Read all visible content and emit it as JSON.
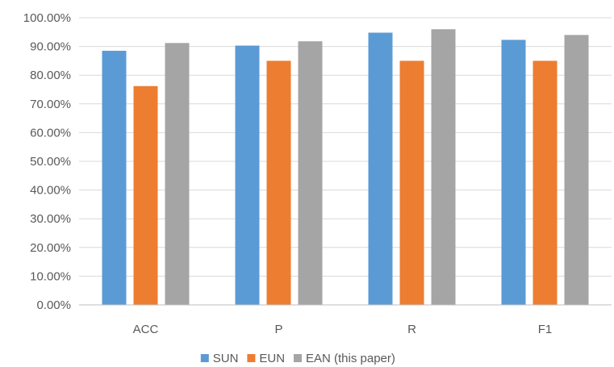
{
  "chart_data": {
    "type": "bar",
    "categories": [
      "ACC",
      "P",
      "R",
      "F1"
    ],
    "series": [
      {
        "name": "SUN",
        "values": [
          88.5,
          90.3,
          94.8,
          92.3
        ],
        "color": "#5b9bd5"
      },
      {
        "name": "EUN",
        "values": [
          76.2,
          85.0,
          85.0,
          85.0
        ],
        "color": "#ed7d31"
      },
      {
        "name": "EAN (this paper)",
        "values": [
          91.2,
          91.8,
          96.0,
          94.0
        ],
        "color": "#a5a5a5"
      }
    ],
    "y_ticks": [
      "0.00%",
      "10.00%",
      "20.00%",
      "30.00%",
      "40.00%",
      "50.00%",
      "60.00%",
      "70.00%",
      "80.00%",
      "90.00%",
      "100.00%"
    ],
    "ylim": [
      0,
      100
    ],
    "grid": true,
    "legend_position": "bottom"
  }
}
